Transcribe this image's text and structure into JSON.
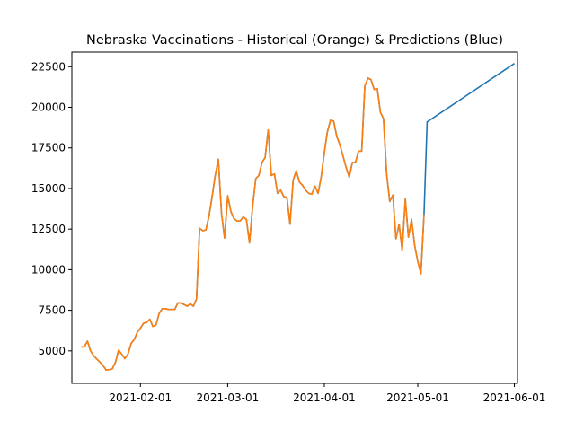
{
  "chart_data": {
    "type": "line",
    "title": "Nebraska Vaccinations - Historical (Orange) & Predictions (Blue)",
    "xlabel": "",
    "ylabel": "",
    "x_range": [
      "2021-01-10",
      "2021-06-02"
    ],
    "ylim": [
      3000,
      23400
    ],
    "grid": false,
    "legend": "none",
    "x_ticks": [
      "2021-02-01",
      "2021-03-01",
      "2021-04-01",
      "2021-05-01",
      "2021-06-01"
    ],
    "y_ticks": [
      5000,
      7500,
      10000,
      12500,
      15000,
      17500,
      20000,
      22500
    ],
    "series": [
      {
        "color": "#1f77b4",
        "points": [
          [
            "2021-01-13",
            5250
          ],
          [
            "2021-01-14",
            5250
          ],
          [
            "2021-01-15",
            5600
          ],
          [
            "2021-01-16",
            5000
          ],
          [
            "2021-01-17",
            4700
          ],
          [
            "2021-01-18",
            4500
          ],
          [
            "2021-01-19",
            4300
          ],
          [
            "2021-01-20",
            4100
          ],
          [
            "2021-01-21",
            3820
          ],
          [
            "2021-01-22",
            3850
          ],
          [
            "2021-01-23",
            3900
          ],
          [
            "2021-01-24",
            4300
          ],
          [
            "2021-01-25",
            5050
          ],
          [
            "2021-01-26",
            4800
          ],
          [
            "2021-01-27",
            4520
          ],
          [
            "2021-01-28",
            4800
          ],
          [
            "2021-01-29",
            5450
          ],
          [
            "2021-01-30",
            5700
          ],
          [
            "2021-01-31",
            6150
          ],
          [
            "2021-02-01",
            6400
          ],
          [
            "2021-02-02",
            6700
          ],
          [
            "2021-02-03",
            6750
          ],
          [
            "2021-02-04",
            6950
          ],
          [
            "2021-02-05",
            6500
          ],
          [
            "2021-02-06",
            6600
          ],
          [
            "2021-02-07",
            7300
          ],
          [
            "2021-02-08",
            7600
          ],
          [
            "2021-02-09",
            7600
          ],
          [
            "2021-02-10",
            7550
          ],
          [
            "2021-02-11",
            7550
          ],
          [
            "2021-02-12",
            7550
          ],
          [
            "2021-02-13",
            7950
          ],
          [
            "2021-02-14",
            7950
          ],
          [
            "2021-02-15",
            7850
          ],
          [
            "2021-02-16",
            7750
          ],
          [
            "2021-02-17",
            7900
          ],
          [
            "2021-02-18",
            7750
          ],
          [
            "2021-02-19",
            8200
          ],
          [
            "2021-02-20",
            12550
          ],
          [
            "2021-02-21",
            12400
          ],
          [
            "2021-02-22",
            12450
          ],
          [
            "2021-02-23",
            13300
          ],
          [
            "2021-02-24",
            14500
          ],
          [
            "2021-02-25",
            15800
          ],
          [
            "2021-02-26",
            16800
          ],
          [
            "2021-02-27",
            13500
          ],
          [
            "2021-02-28",
            11950
          ],
          [
            "2021-03-01",
            14550
          ],
          [
            "2021-03-02",
            13600
          ],
          [
            "2021-03-03",
            13150
          ],
          [
            "2021-03-04",
            13000
          ],
          [
            "2021-03-05",
            13000
          ],
          [
            "2021-03-06",
            13250
          ],
          [
            "2021-03-07",
            13100
          ],
          [
            "2021-03-08",
            11650
          ],
          [
            "2021-03-09",
            13900
          ],
          [
            "2021-03-10",
            15600
          ],
          [
            "2021-03-11",
            15800
          ],
          [
            "2021-03-12",
            16600
          ],
          [
            "2021-03-13",
            16900
          ],
          [
            "2021-03-14",
            18600
          ],
          [
            "2021-03-15",
            15800
          ],
          [
            "2021-03-16",
            15900
          ],
          [
            "2021-03-17",
            14700
          ],
          [
            "2021-03-18",
            14900
          ],
          [
            "2021-03-19",
            14500
          ],
          [
            "2021-03-20",
            14450
          ],
          [
            "2021-03-21",
            12800
          ],
          [
            "2021-03-22",
            15500
          ],
          [
            "2021-03-23",
            16100
          ],
          [
            "2021-03-24",
            15400
          ],
          [
            "2021-03-25",
            15200
          ],
          [
            "2021-03-26",
            14900
          ],
          [
            "2021-03-27",
            14700
          ],
          [
            "2021-03-28",
            14650
          ],
          [
            "2021-03-29",
            15150
          ],
          [
            "2021-03-30",
            14700
          ],
          [
            "2021-03-31",
            15700
          ],
          [
            "2021-04-01",
            17200
          ],
          [
            "2021-04-02",
            18500
          ],
          [
            "2021-04-03",
            19200
          ],
          [
            "2021-04-04",
            19150
          ],
          [
            "2021-04-05",
            18200
          ],
          [
            "2021-04-06",
            17700
          ],
          [
            "2021-04-07",
            17000
          ],
          [
            "2021-04-08",
            16300
          ],
          [
            "2021-04-09",
            15700
          ],
          [
            "2021-04-10",
            16600
          ],
          [
            "2021-04-11",
            16600
          ],
          [
            "2021-04-12",
            17300
          ],
          [
            "2021-04-13",
            17300
          ],
          [
            "2021-04-14",
            21300
          ],
          [
            "2021-04-15",
            21800
          ],
          [
            "2021-04-16",
            21700
          ],
          [
            "2021-04-17",
            21100
          ],
          [
            "2021-04-18",
            21150
          ],
          [
            "2021-04-19",
            19700
          ],
          [
            "2021-04-20",
            19300
          ],
          [
            "2021-04-21",
            15900
          ],
          [
            "2021-04-22",
            14200
          ],
          [
            "2021-04-23",
            14600
          ],
          [
            "2021-04-24",
            11900
          ],
          [
            "2021-04-25",
            12800
          ],
          [
            "2021-04-26",
            11200
          ],
          [
            "2021-04-27",
            14350
          ],
          [
            "2021-04-28",
            12000
          ],
          [
            "2021-04-29",
            13100
          ],
          [
            "2021-04-30",
            11500
          ],
          [
            "2021-05-01",
            10500
          ],
          [
            "2021-05-02",
            9750
          ],
          [
            "2021-05-03",
            13400
          ],
          [
            "2021-05-04",
            19100
          ],
          [
            "2021-06-01",
            22700
          ]
        ]
      },
      {
        "color": "#ff7f0e",
        "points": [
          [
            "2021-01-13",
            5250
          ],
          [
            "2021-01-14",
            5250
          ],
          [
            "2021-01-15",
            5600
          ],
          [
            "2021-01-16",
            5000
          ],
          [
            "2021-01-17",
            4700
          ],
          [
            "2021-01-18",
            4500
          ],
          [
            "2021-01-19",
            4300
          ],
          [
            "2021-01-20",
            4100
          ],
          [
            "2021-01-21",
            3820
          ],
          [
            "2021-01-22",
            3850
          ],
          [
            "2021-01-23",
            3900
          ],
          [
            "2021-01-24",
            4300
          ],
          [
            "2021-01-25",
            5050
          ],
          [
            "2021-01-26",
            4800
          ],
          [
            "2021-01-27",
            4520
          ],
          [
            "2021-01-28",
            4800
          ],
          [
            "2021-01-29",
            5450
          ],
          [
            "2021-01-30",
            5700
          ],
          [
            "2021-01-31",
            6150
          ],
          [
            "2021-02-01",
            6400
          ],
          [
            "2021-02-02",
            6700
          ],
          [
            "2021-02-03",
            6750
          ],
          [
            "2021-02-04",
            6950
          ],
          [
            "2021-02-05",
            6500
          ],
          [
            "2021-02-06",
            6600
          ],
          [
            "2021-02-07",
            7300
          ],
          [
            "2021-02-08",
            7600
          ],
          [
            "2021-02-09",
            7600
          ],
          [
            "2021-02-10",
            7550
          ],
          [
            "2021-02-11",
            7550
          ],
          [
            "2021-02-12",
            7550
          ],
          [
            "2021-02-13",
            7950
          ],
          [
            "2021-02-14",
            7950
          ],
          [
            "2021-02-15",
            7850
          ],
          [
            "2021-02-16",
            7750
          ],
          [
            "2021-02-17",
            7900
          ],
          [
            "2021-02-18",
            7750
          ],
          [
            "2021-02-19",
            8200
          ],
          [
            "2021-02-20",
            12550
          ],
          [
            "2021-02-21",
            12400
          ],
          [
            "2021-02-22",
            12450
          ],
          [
            "2021-02-23",
            13300
          ],
          [
            "2021-02-24",
            14500
          ],
          [
            "2021-02-25",
            15800
          ],
          [
            "2021-02-26",
            16800
          ],
          [
            "2021-02-27",
            13500
          ],
          [
            "2021-02-28",
            11950
          ],
          [
            "2021-03-01",
            14550
          ],
          [
            "2021-03-02",
            13600
          ],
          [
            "2021-03-03",
            13150
          ],
          [
            "2021-03-04",
            13000
          ],
          [
            "2021-03-05",
            13000
          ],
          [
            "2021-03-06",
            13250
          ],
          [
            "2021-03-07",
            13100
          ],
          [
            "2021-03-08",
            11650
          ],
          [
            "2021-03-09",
            13900
          ],
          [
            "2021-03-10",
            15600
          ],
          [
            "2021-03-11",
            15800
          ],
          [
            "2021-03-12",
            16600
          ],
          [
            "2021-03-13",
            16900
          ],
          [
            "2021-03-14",
            18600
          ],
          [
            "2021-03-15",
            15800
          ],
          [
            "2021-03-16",
            15900
          ],
          [
            "2021-03-17",
            14700
          ],
          [
            "2021-03-18",
            14900
          ],
          [
            "2021-03-19",
            14500
          ],
          [
            "2021-03-20",
            14450
          ],
          [
            "2021-03-21",
            12800
          ],
          [
            "2021-03-22",
            15500
          ],
          [
            "2021-03-23",
            16100
          ],
          [
            "2021-03-24",
            15400
          ],
          [
            "2021-03-25",
            15200
          ],
          [
            "2021-03-26",
            14900
          ],
          [
            "2021-03-27",
            14700
          ],
          [
            "2021-03-28",
            14650
          ],
          [
            "2021-03-29",
            15150
          ],
          [
            "2021-03-30",
            14700
          ],
          [
            "2021-03-31",
            15700
          ],
          [
            "2021-04-01",
            17200
          ],
          [
            "2021-04-02",
            18500
          ],
          [
            "2021-04-03",
            19200
          ],
          [
            "2021-04-04",
            19150
          ],
          [
            "2021-04-05",
            18200
          ],
          [
            "2021-04-06",
            17700
          ],
          [
            "2021-04-07",
            17000
          ],
          [
            "2021-04-08",
            16300
          ],
          [
            "2021-04-09",
            15700
          ],
          [
            "2021-04-10",
            16600
          ],
          [
            "2021-04-11",
            16600
          ],
          [
            "2021-04-12",
            17300
          ],
          [
            "2021-04-13",
            17300
          ],
          [
            "2021-04-14",
            21300
          ],
          [
            "2021-04-15",
            21800
          ],
          [
            "2021-04-16",
            21700
          ],
          [
            "2021-04-17",
            21100
          ],
          [
            "2021-04-18",
            21150
          ],
          [
            "2021-04-19",
            19700
          ],
          [
            "2021-04-20",
            19300
          ],
          [
            "2021-04-21",
            15900
          ],
          [
            "2021-04-22",
            14200
          ],
          [
            "2021-04-23",
            14600
          ],
          [
            "2021-04-24",
            11900
          ],
          [
            "2021-04-25",
            12800
          ],
          [
            "2021-04-26",
            11200
          ],
          [
            "2021-04-27",
            14350
          ],
          [
            "2021-04-28",
            12000
          ],
          [
            "2021-04-29",
            13100
          ],
          [
            "2021-04-30",
            11500
          ],
          [
            "2021-05-01",
            10500
          ],
          [
            "2021-05-02",
            9750
          ],
          [
            "2021-05-03",
            13400
          ]
        ]
      }
    ]
  }
}
